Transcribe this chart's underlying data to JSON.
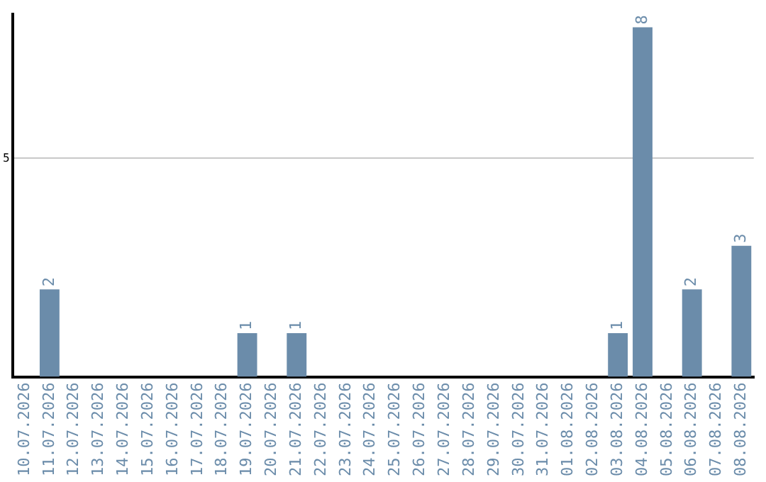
{
  "chart_data": {
    "type": "bar",
    "categories": [
      "10.07.2026",
      "11.07.2026",
      "12.07.2026",
      "13.07.2026",
      "14.07.2026",
      "15.07.2026",
      "16.07.2026",
      "17.07.2026",
      "18.07.2026",
      "19.07.2026",
      "20.07.2026",
      "21.07.2026",
      "22.07.2026",
      "23.07.2026",
      "24.07.2026",
      "25.07.2026",
      "26.07.2026",
      "27.07.2026",
      "28.07.2026",
      "29.07.2026",
      "30.07.2026",
      "31.07.2026",
      "01.08.2026",
      "02.08.2026",
      "03.08.2026",
      "04.08.2026",
      "05.08.2026",
      "06.08.2026",
      "07.08.2026",
      "08.08.2026"
    ],
    "values": [
      0,
      2,
      0,
      0,
      0,
      0,
      0,
      0,
      0,
      1,
      0,
      1,
      0,
      0,
      0,
      0,
      0,
      0,
      0,
      0,
      0,
      0,
      0,
      0,
      1,
      8,
      0,
      2,
      0,
      3
    ],
    "value_labels": [
      null,
      "2",
      null,
      null,
      null,
      null,
      null,
      null,
      null,
      "1",
      null,
      "1",
      null,
      null,
      null,
      null,
      null,
      null,
      null,
      null,
      null,
      null,
      null,
      null,
      "1",
      "8",
      null,
      "2",
      null,
      "3"
    ],
    "color": "#6b8caa",
    "ylim": [
      0,
      8.3
    ],
    "yticks": [
      5
    ],
    "grid": "y",
    "legend": false
  }
}
